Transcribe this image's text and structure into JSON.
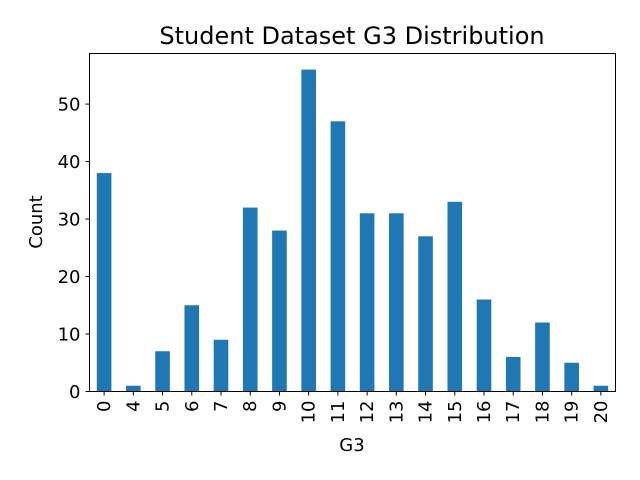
{
  "chart_data": {
    "type": "bar",
    "title": "Student Dataset G3 Distribution",
    "xlabel": "G3",
    "ylabel": "Count",
    "categories": [
      "0",
      "4",
      "5",
      "6",
      "7",
      "8",
      "9",
      "10",
      "11",
      "12",
      "13",
      "14",
      "15",
      "16",
      "17",
      "18",
      "19",
      "20"
    ],
    "values": [
      38,
      1,
      7,
      15,
      9,
      32,
      28,
      56,
      47,
      31,
      31,
      27,
      33,
      16,
      6,
      12,
      5,
      1
    ],
    "ylim": [
      0,
      58.8
    ],
    "yticks": [
      0,
      10,
      20,
      30,
      40,
      50
    ],
    "grid": false,
    "bar_color": "#1f77b4"
  }
}
